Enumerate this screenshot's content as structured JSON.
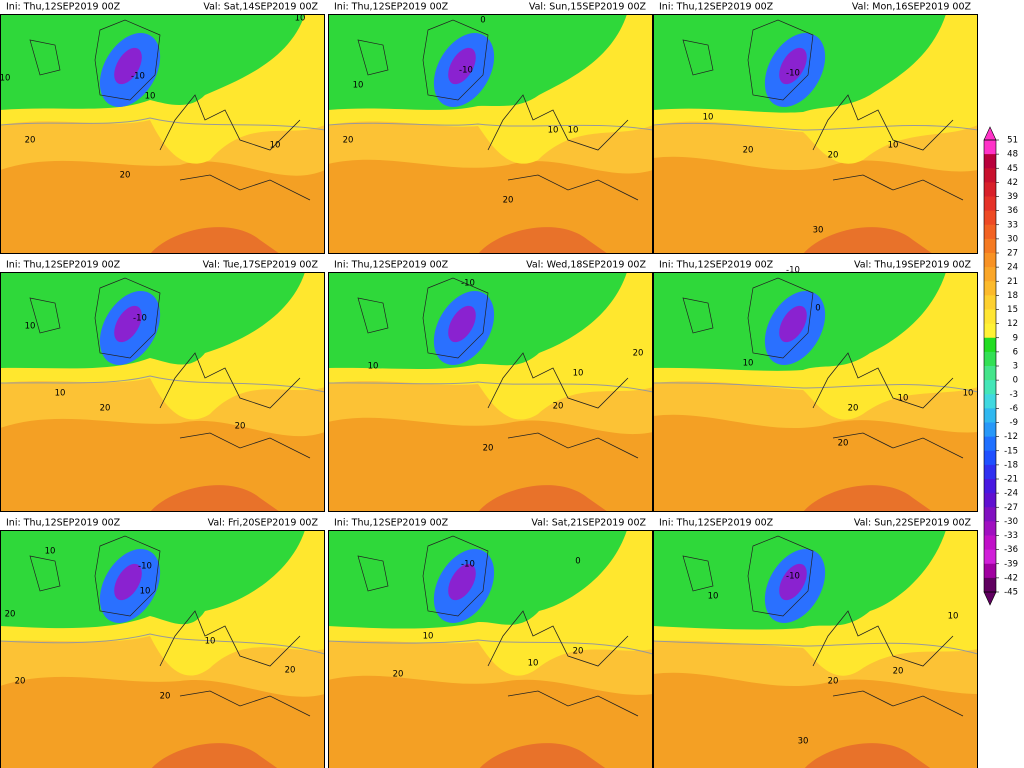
{
  "panels": [
    {
      "init": "Ini: Thu,12SEP2019 00Z",
      "valid": "Val: Sat,14SEP2019 00Z",
      "contour_labels": [
        10,
        -10,
        10,
        10,
        20,
        20,
        10
      ]
    },
    {
      "init": "Ini: Thu,12SEP2019 00Z",
      "valid": "Val: Sun,15SEP2019 00Z",
      "contour_labels": [
        0,
        -10,
        10,
        10,
        20,
        10,
        20
      ]
    },
    {
      "init": "Ini: Thu,12SEP2019 00Z",
      "valid": "Val: Mon,16SEP2019 00Z",
      "contour_labels": [
        -10,
        10,
        20,
        20,
        10,
        30
      ]
    },
    {
      "init": "Ini: Thu,12SEP2019 00Z",
      "valid": "Val: Tue,17SEP2019 00Z",
      "contour_labels": [
        10,
        -10,
        10,
        20,
        20
      ]
    },
    {
      "init": "Ini: Thu,12SEP2019 00Z",
      "valid": "Val: Wed,18SEP2019 00Z",
      "contour_labels": [
        -10,
        10,
        10,
        20,
        20,
        20
      ]
    },
    {
      "init": "Ini: Thu,12SEP2019 00Z",
      "valid": "Val: Thu,19SEP2019 00Z",
      "contour_labels": [
        -10,
        0,
        10,
        10,
        20,
        10,
        20
      ]
    },
    {
      "init": "Ini: Thu,12SEP2019 00Z",
      "valid": "Val: Fri,20SEP2019 00Z",
      "contour_labels": [
        10,
        -10,
        10,
        20,
        10,
        20,
        20,
        20
      ]
    },
    {
      "init": "Ini: Thu,12SEP2019 00Z",
      "valid": "Val: Sat,21SEP2019 00Z",
      "contour_labels": [
        -10,
        0,
        10,
        20,
        10,
        20
      ]
    },
    {
      "init": "Ini: Thu,12SEP2019 00Z",
      "valid": "Val: Sun,22SEP2019 00Z",
      "contour_labels": [
        -10,
        10,
        20,
        20,
        30,
        10
      ]
    }
  ],
  "colorbar": {
    "levels": [
      51,
      48,
      45,
      42,
      39,
      36,
      33,
      30,
      27,
      24,
      21,
      18,
      15,
      12,
      9,
      6,
      3,
      0,
      -3,
      -6,
      -9,
      -12,
      -15,
      -18,
      -21,
      -24,
      -27,
      -30,
      -33,
      -36,
      -39,
      -42,
      -45
    ],
    "colors": [
      "#ff33c8",
      "#b8003c",
      "#c8102e",
      "#d8202a",
      "#e53228",
      "#ee4a24",
      "#f26222",
      "#f57a22",
      "#f89224",
      "#faa628",
      "#fcba2c",
      "#fdd030",
      "#ffe634",
      "#fff236",
      "#22dd22",
      "#33e055",
      "#44e48a",
      "#44e6b8",
      "#40d8e0",
      "#30b8f0",
      "#2898f8",
      "#2070ff",
      "#2050ff",
      "#3030f0",
      "#4818e0",
      "#6010d0",
      "#8010c0",
      "#a010c0",
      "#c010c8",
      "#d020d8",
      "#a000a0",
      "#600060"
    ]
  }
}
